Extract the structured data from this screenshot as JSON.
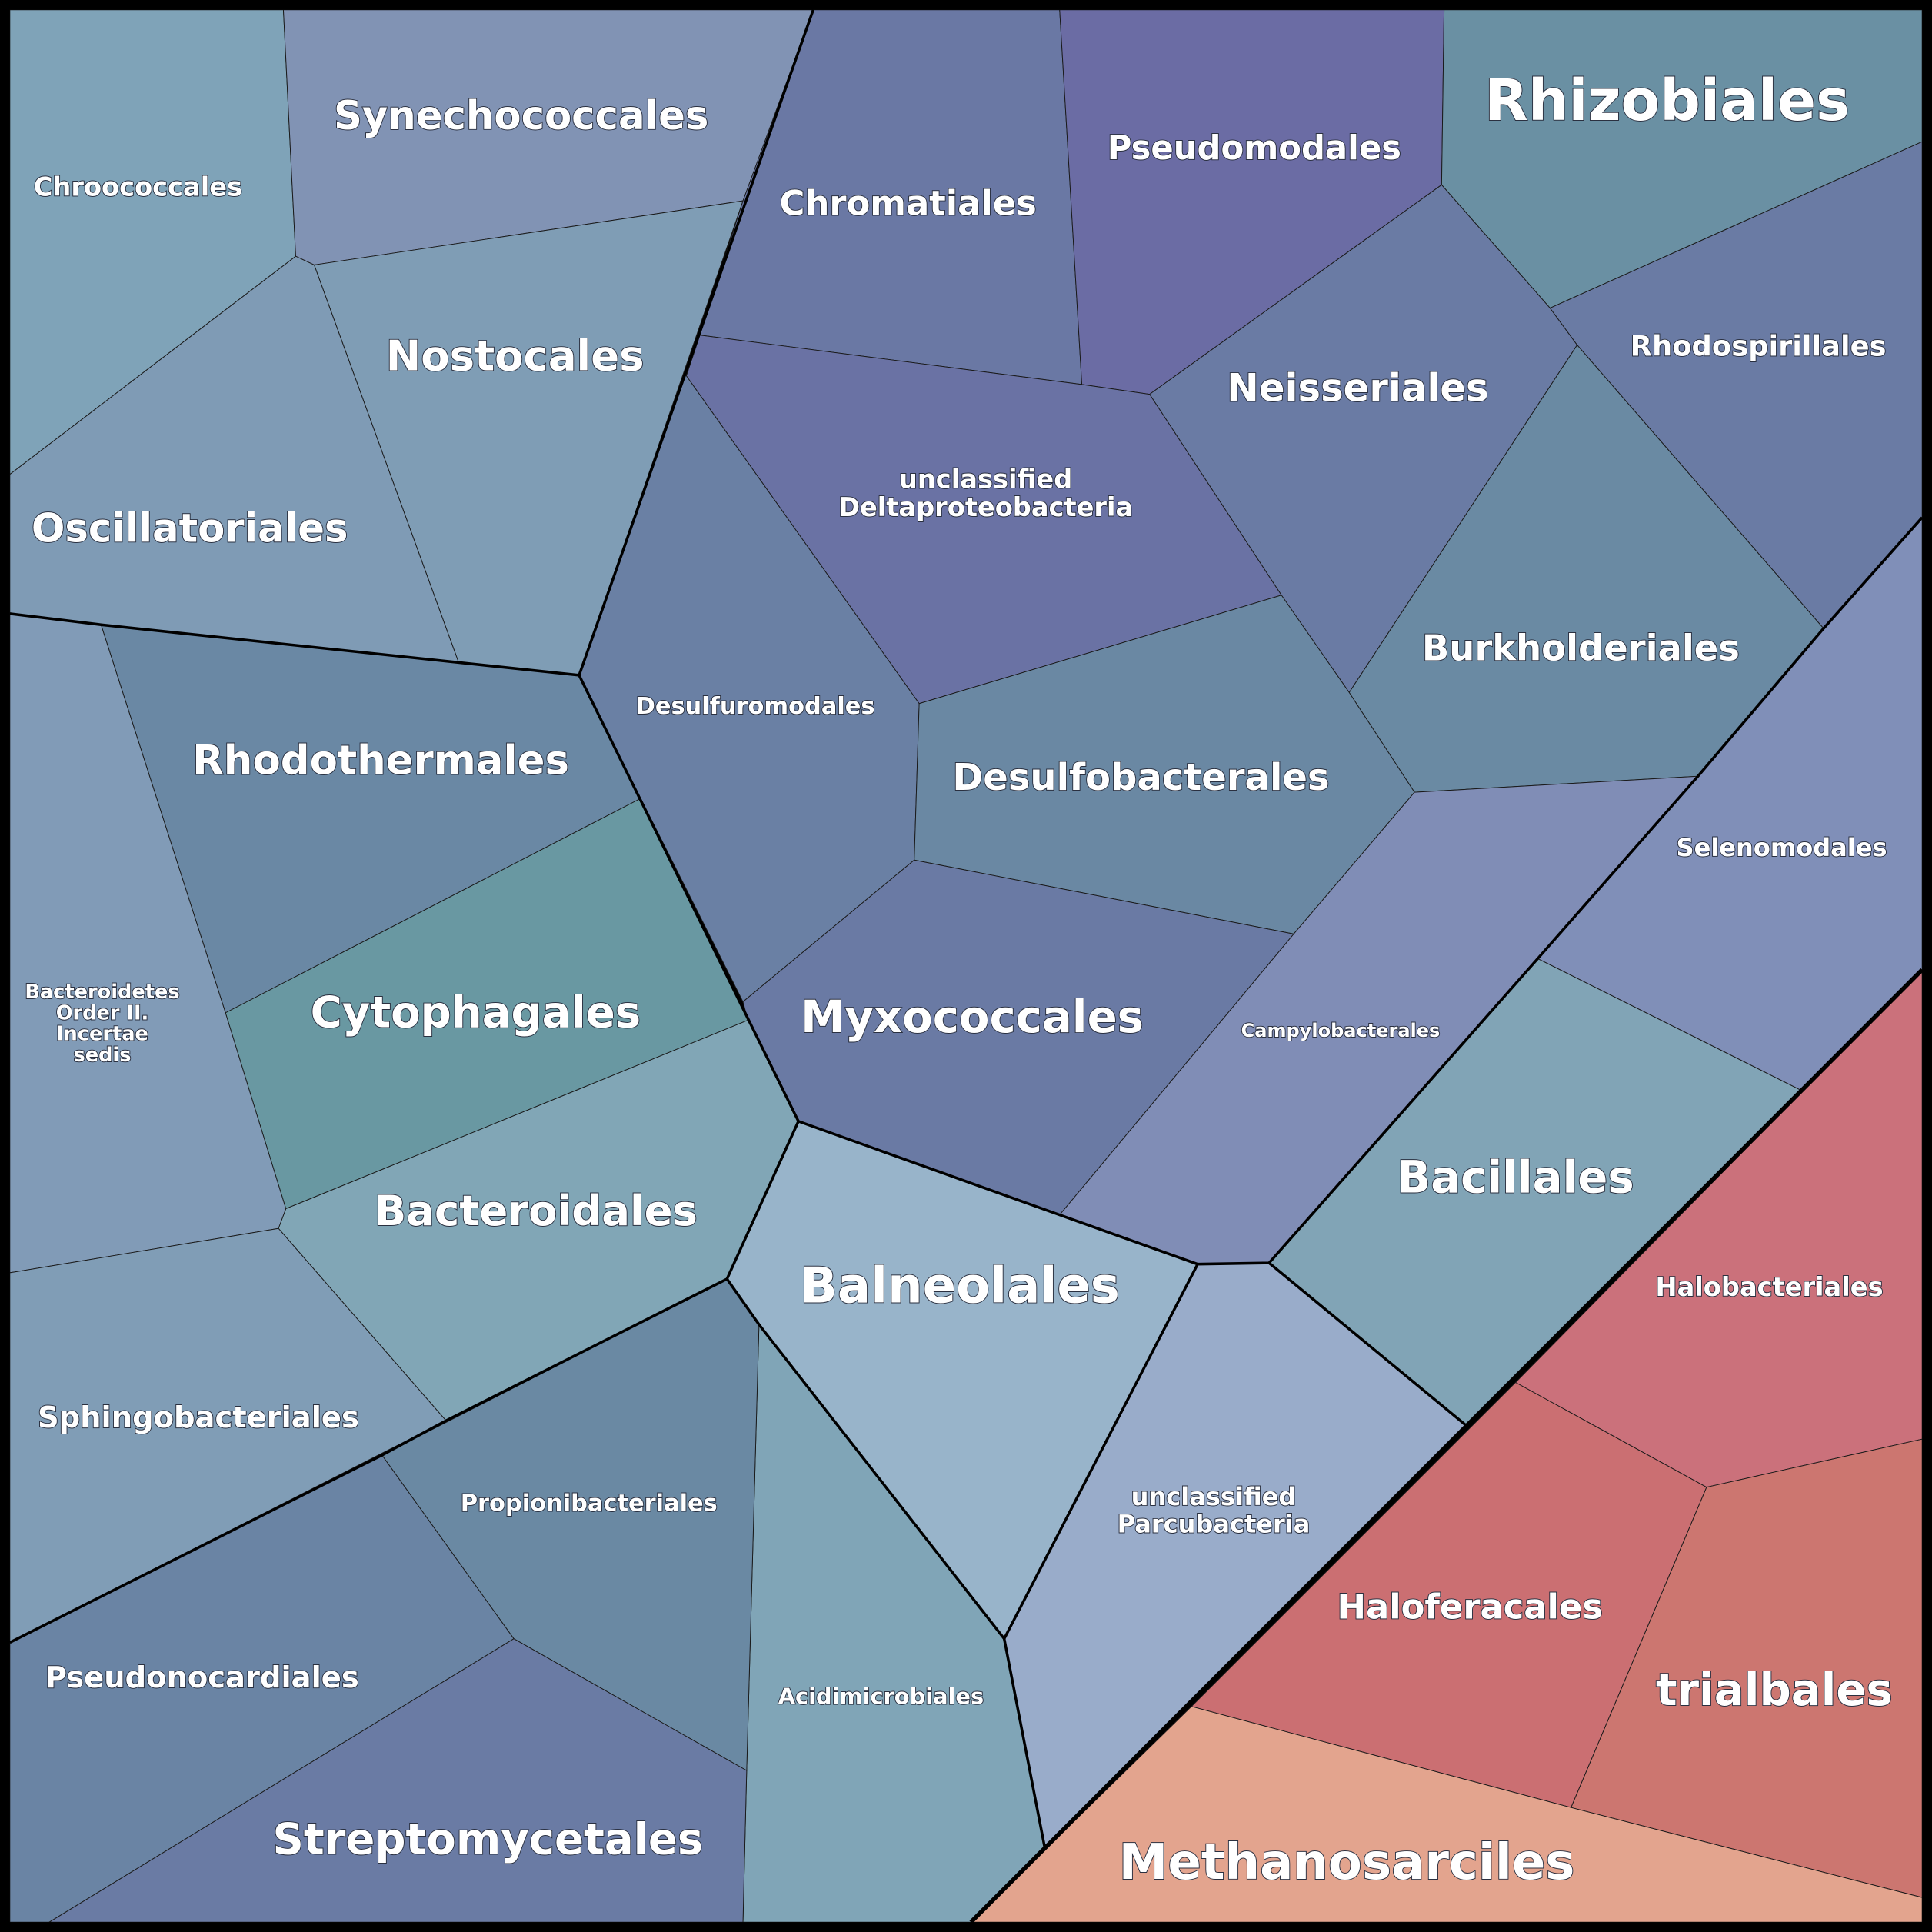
{
  "cells": [
    {
      "label": [
        "Chroococcales"
      ]
    },
    {
      "label": [
        "Synechococcales"
      ]
    },
    {
      "label": [
        "Nostocales"
      ]
    },
    {
      "label": [
        "Oscillatoriales"
      ]
    },
    {
      "label": [
        "Chromatiales"
      ]
    },
    {
      "label": [
        "Pseudomodales"
      ]
    },
    {
      "label": [
        "Rhizobiales"
      ]
    },
    {
      "label": [
        "Neisseriales"
      ]
    },
    {
      "label": [
        "Rhodospirillales"
      ]
    },
    {
      "label": [
        "Burkholderiales"
      ]
    },
    {
      "label": [
        "unclassified",
        "Deltaproteobacteria"
      ]
    },
    {
      "label": [
        "Desulfuromodales"
      ]
    },
    {
      "label": [
        "Desulfobacterales"
      ]
    },
    {
      "label": [
        "Myxococcales"
      ]
    },
    {
      "label": [
        "Campylobacterales"
      ]
    },
    {
      "label": [
        "Selenomodales"
      ]
    },
    {
      "label": [
        "Bacillales"
      ]
    },
    {
      "label": [
        "Halobacteriales"
      ]
    },
    {
      "label": [
        "trialbales"
      ]
    },
    {
      "label": [
        "Haloferacales"
      ]
    },
    {
      "label": [
        "Methanosarciles"
      ]
    },
    {
      "label": [
        "unclassified",
        "Parcubacteria"
      ]
    },
    {
      "label": [
        "Balneolales"
      ]
    },
    {
      "label": [
        "Acidimicrobiales"
      ]
    },
    {
      "label": [
        "Rhodothermales"
      ]
    },
    {
      "label": [
        "Cytophagales"
      ]
    },
    {
      "label": [
        "Bacteroidales"
      ]
    },
    {
      "label": [
        "Bacteroidetes",
        "Order II.",
        "Incertae",
        "sedis"
      ]
    },
    {
      "label": [
        "Sphingobacteriales"
      ]
    },
    {
      "label": [
        "Propionibacteriales"
      ]
    },
    {
      "label": [
        "Pseudonocardiales"
      ]
    },
    {
      "label": [
        "Streptomycetales"
      ]
    }
  ]
}
